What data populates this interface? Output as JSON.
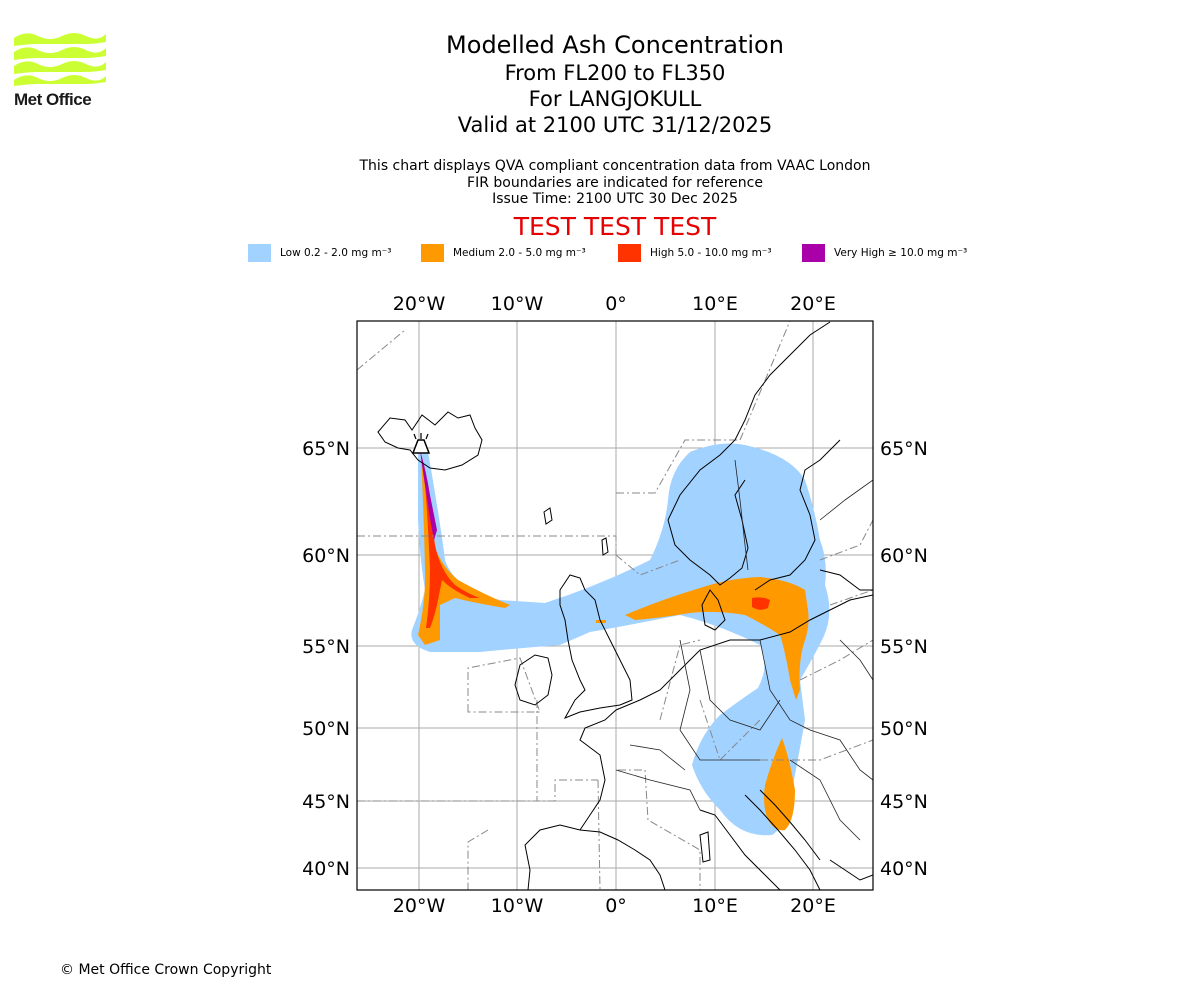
{
  "logo": {
    "text": "Met Office",
    "color": "#ccff33",
    "icon": "met-office-wave-logo"
  },
  "title": {
    "line1": "Modelled Ash Concentration",
    "line2": "From FL200 to FL350",
    "line3": "For LANGJOKULL",
    "line4": "Valid at 2100 UTC 31/12/2025"
  },
  "subtitle": {
    "line1": "This chart displays QVA compliant concentration data from VAAC London",
    "line2": "FIR boundaries are indicated for reference",
    "line3": "Issue Time: 2100 UTC 30 Dec 2025"
  },
  "test_banner": "TEST TEST TEST",
  "legend": [
    {
      "label": "Low 0.2 - 2.0 mg m⁻³",
      "color": "#a2d2ff"
    },
    {
      "label": "Medium 2.0 - 5.0 mg m⁻³",
      "color": "#ff9900"
    },
    {
      "label": "High 5.0 - 10.0 mg m⁻³",
      "color": "#ff3300"
    },
    {
      "label": "Very High  ≥  10.0 mg m⁻³",
      "color": "#aa00aa"
    }
  ],
  "map": {
    "lon_labels": [
      "20°W",
      "10°W",
      "0°",
      "10°E",
      "20°E"
    ],
    "lat_labels": [
      "65°N",
      "60°N",
      "55°N",
      "50°N",
      "45°N",
      "40°N"
    ],
    "volcano": "LANGJOKULL"
  },
  "copyright": "© Met Office Crown Copyright"
}
